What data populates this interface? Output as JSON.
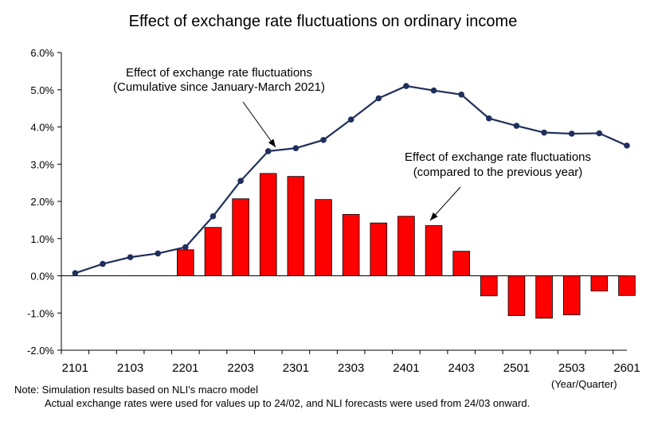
{
  "chart_data": {
    "type": "bar+line",
    "title": "Effect of exchange rate fluctuations on ordinary income",
    "categories": [
      "2101",
      "2102",
      "2103",
      "2104",
      "2201",
      "2202",
      "2203",
      "2204",
      "2301",
      "2302",
      "2303",
      "2304",
      "2401",
      "2402",
      "2403",
      "2404",
      "2501",
      "2502",
      "2503",
      "2504",
      "2601"
    ],
    "x_tick_labels": [
      "2101",
      "2103",
      "2201",
      "2203",
      "2301",
      "2303",
      "2401",
      "2403",
      "2501",
      "2503",
      "2601"
    ],
    "xlabel": "(Year/Quarter)",
    "ylabel": "",
    "ylim": [
      -2.0,
      6.0
    ],
    "y_ticks": [
      -2.0,
      -1.0,
      0.0,
      1.0,
      2.0,
      3.0,
      4.0,
      5.0,
      6.0
    ],
    "y_tick_labels": [
      "-2.0%",
      "-1.0%",
      "0.0%",
      "1.0%",
      "2.0%",
      "3.0%",
      "4.0%",
      "5.0%",
      "6.0%"
    ],
    "grid": false,
    "series": [
      {
        "kind": "line",
        "color": "#1f2f5c",
        "values": [
          0.07,
          0.32,
          0.5,
          0.6,
          0.77,
          1.6,
          2.55,
          3.35,
          3.43,
          3.65,
          4.2,
          4.77,
          5.1,
          4.98,
          4.87,
          4.23,
          4.03,
          3.85,
          3.82,
          3.83,
          3.5
        ]
      },
      {
        "kind": "bar",
        "color": "#ff0000",
        "values": [
          null,
          null,
          null,
          null,
          0.7,
          1.3,
          2.07,
          2.75,
          2.67,
          2.05,
          1.65,
          1.42,
          1.6,
          1.35,
          0.66,
          -0.54,
          -1.07,
          -1.14,
          -1.05,
          -0.41,
          -0.53
        ]
      }
    ],
    "annotations": [
      {
        "line1": "Effect of exchange rate fluctuations",
        "line2": "(Cumulative since January-March 2021)"
      },
      {
        "line1": "Effect of exchange rate fluctuations",
        "line2": "(compared to the previous year)"
      }
    ]
  },
  "notes": {
    "line1": "Note: Simulation results based on NLI's macro model",
    "line2": "Actual exchange rates were used for values up to 24/02, and NLI forecasts were used from 24/03 onward."
  }
}
